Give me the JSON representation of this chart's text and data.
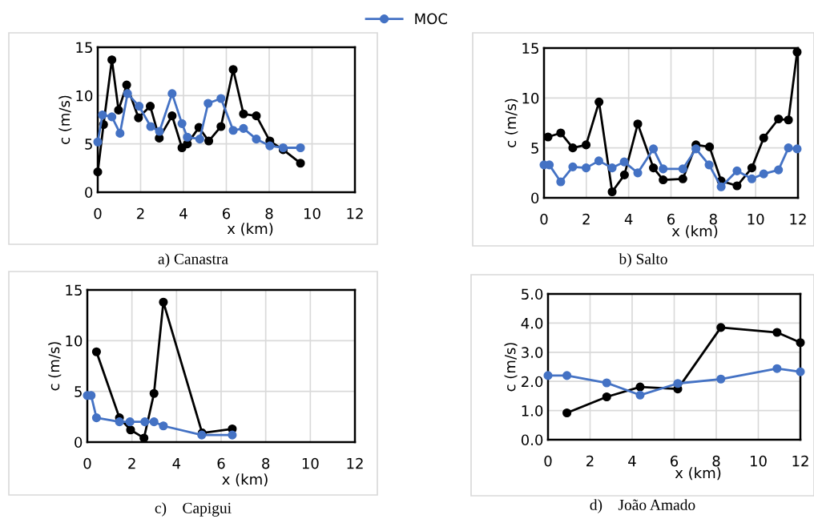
{
  "chart_data": [
    {
      "type": "line",
      "title": "a) Canastra",
      "xlabel": "x (km)",
      "ylabel": "c (m/s)",
      "xlim": [
        0,
        12
      ],
      "xticks": [
        0,
        2,
        4,
        6,
        8,
        10,
        12
      ],
      "ylim": [
        0,
        15
      ],
      "yticks": [
        0,
        5,
        10,
        15
      ],
      "grid": true,
      "marker": "circle",
      "line_style": "solid",
      "legend": "top",
      "series": [
        {
          "color": "#000000",
          "x": [
            0,
            0.27,
            0.66,
            0.97,
            1.35,
            1.9,
            2.45,
            2.87,
            3.47,
            3.93,
            4.18,
            4.72,
            5.18,
            5.75,
            6.32,
            6.8,
            7.4,
            8.03,
            8.65,
            9.46
          ],
          "values": [
            2.1,
            7.0,
            13.7,
            8.5,
            11.1,
            7.7,
            8.9,
            5.6,
            7.9,
            4.6,
            5.0,
            6.7,
            5.3,
            6.8,
            12.7,
            8.1,
            7.9,
            5.3,
            4.4,
            3.0
          ]
        },
        {
          "name": "MOC",
          "color": "#4472c4",
          "x": [
            0,
            0.22,
            0.66,
            1.04,
            1.39,
            1.93,
            2.47,
            2.88,
            3.47,
            3.93,
            4.18,
            4.76,
            5.15,
            5.75,
            6.32,
            6.8,
            7.4,
            8.03,
            8.65,
            9.46
          ],
          "values": [
            5.2,
            8.0,
            7.8,
            6.1,
            10.2,
            8.9,
            6.8,
            6.3,
            10.2,
            7.1,
            5.7,
            5.5,
            9.2,
            9.7,
            6.4,
            6.6,
            5.5,
            4.8,
            4.6,
            4.6
          ]
        }
      ]
    },
    {
      "type": "line",
      "title": "b) Salto",
      "xlabel": "x (km)",
      "ylabel": "c (m/s)",
      "xlim": [
        0,
        12
      ],
      "xticks": [
        0,
        2,
        4,
        6,
        8,
        10,
        12
      ],
      "ylim": [
        0,
        15
      ],
      "yticks": [
        0,
        5,
        10,
        15
      ],
      "grid": true,
      "marker": "circle",
      "line_style": "solid",
      "series": [
        {
          "color": "#000000",
          "x": [
            0.19,
            0.79,
            1.36,
            1.99,
            2.6,
            3.22,
            3.8,
            4.43,
            5.17,
            5.63,
            6.56,
            7.18,
            7.82,
            8.37,
            9.12,
            9.82,
            10.38,
            11.08,
            11.55,
            11.96
          ],
          "values": [
            6.1,
            6.5,
            5.0,
            5.3,
            9.6,
            0.6,
            2.3,
            7.4,
            3.0,
            1.8,
            1.9,
            5.3,
            5.1,
            1.7,
            1.2,
            3.0,
            6.0,
            7.9,
            7.8,
            14.6
          ]
        },
        {
          "color": "#4472c4",
          "x": [
            0,
            0.25,
            0.79,
            1.36,
            1.99,
            2.59,
            3.22,
            3.79,
            4.43,
            5.17,
            5.63,
            6.56,
            7.18,
            7.8,
            8.37,
            9.12,
            9.82,
            10.38,
            11.08,
            11.55,
            11.96
          ],
          "values": [
            3.3,
            3.3,
            1.6,
            3.1,
            3.0,
            3.7,
            3.0,
            3.6,
            2.5,
            4.9,
            2.9,
            2.9,
            4.9,
            3.3,
            1.1,
            2.7,
            1.9,
            2.4,
            2.8,
            5.0,
            4.9
          ]
        }
      ]
    },
    {
      "type": "line",
      "title": "c)    Capigui",
      "xlabel": "x (km)",
      "ylabel": "c (m/s)",
      "xlim": [
        0,
        12
      ],
      "xticks": [
        0,
        2,
        4,
        6,
        8,
        10,
        12
      ],
      "ylim": [
        0,
        15
      ],
      "yticks": [
        0,
        5,
        10,
        15
      ],
      "grid": true,
      "marker": "circle",
      "line_style": "solid",
      "series": [
        {
          "color": "#000000",
          "x": [
            0.41,
            1.44,
            1.94,
            2.54,
            2.99,
            3.41,
            5.15,
            6.5
          ],
          "values": [
            8.9,
            2.4,
            1.2,
            0.4,
            4.8,
            13.8,
            0.9,
            1.3
          ]
        },
        {
          "color": "#4472c4",
          "x": [
            0,
            0.17,
            0.41,
            1.44,
            1.91,
            2.58,
            2.99,
            3.41,
            5.13,
            6.5
          ],
          "values": [
            4.6,
            4.6,
            2.4,
            2.0,
            2.0,
            2.0,
            2.0,
            1.6,
            0.7,
            0.7
          ]
        }
      ]
    },
    {
      "type": "line",
      "title": "d)    João Amado",
      "xlabel": "x (km)",
      "ylabel": "c (m/s)",
      "xlim": [
        0,
        12
      ],
      "xticks": [
        0,
        2,
        4,
        6,
        8,
        10,
        12
      ],
      "ylim": [
        0,
        5
      ],
      "yticks": [
        {
          "value": 0,
          "label": "0.0"
        },
        {
          "value": 1,
          "label": "1.0"
        },
        {
          "value": 2,
          "label": "2.0"
        },
        {
          "value": 3,
          "label": "3.0"
        },
        {
          "value": 4,
          "label": "4.0"
        },
        {
          "value": 5,
          "label": "5.0"
        }
      ],
      "grid": true,
      "marker": "circle",
      "line_style": "solid",
      "series": [
        {
          "color": "#000000",
          "x": [
            0.9,
            2.79,
            4.38,
            6.17,
            8.22,
            10.89,
            12
          ],
          "values": [
            0.92,
            1.47,
            1.81,
            1.74,
            3.85,
            3.68,
            3.33
          ]
        },
        {
          "color": "#4472c4",
          "x": [
            0,
            0.9,
            2.79,
            4.38,
            6.17,
            8.22,
            10.89,
            12
          ],
          "values": [
            2.2,
            2.2,
            1.95,
            1.53,
            1.93,
            2.08,
            2.44,
            2.33
          ]
        }
      ]
    }
  ]
}
